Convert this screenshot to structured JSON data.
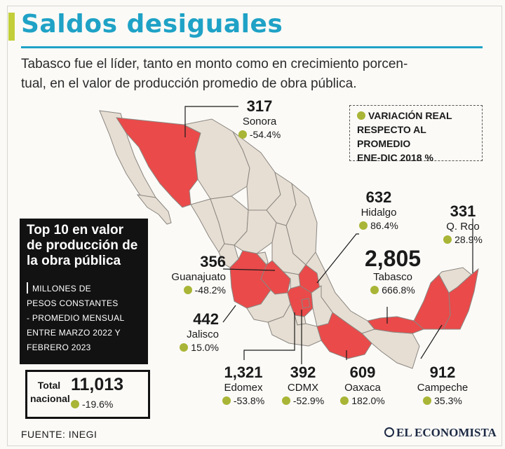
{
  "header": {
    "title": "Saldos desiguales",
    "subtitle_line1": "Tabasco fue el líder, tanto en monto como en crecimiento porcen-",
    "subtitle_line2": "tual, en el valor de producción promedio de obra pública."
  },
  "legend": {
    "line1": "VARIACIÓN REAL",
    "line2": "RESPECTO AL PROMEDIO",
    "line3": "ENE-DIC 2018 %",
    "dot_color": "#a9b536"
  },
  "top_box": {
    "title_line1": "Top 10 en valor",
    "title_line2": "de producción de",
    "title_line3": "la obra pública",
    "note_line1": "MILLONES DE",
    "note_line2": "PESOS CONSTANTES",
    "note_line3": "- PROMEDIO MENSUAL",
    "note_line4": "ENTRE MARZO 2022 Y",
    "note_line5": "FEBRERO 2023"
  },
  "total": {
    "label_line1": "Total",
    "label_line2": "nacional",
    "value": "11,013",
    "pct": "-19.6%"
  },
  "states": [
    {
      "name": "Sonora",
      "value": "317",
      "pct": "-54.4%"
    },
    {
      "name": "Hidalgo",
      "value": "632",
      "pct": "86.4%"
    },
    {
      "name": "Q. Roo",
      "value": "331",
      "pct": "28.9%"
    },
    {
      "name": "Tabasco",
      "value": "2,805",
      "pct": "666.8%"
    },
    {
      "name": "Guanajuato",
      "value": "356",
      "pct": "-48.2%"
    },
    {
      "name": "Jalisco",
      "value": "442",
      "pct": "15.0%"
    },
    {
      "name": "Edomex",
      "value": "1,321",
      "pct": "-53.8%"
    },
    {
      "name": "CDMX",
      "value": "392",
      "pct": "-52.9%"
    },
    {
      "name": "Oaxaca",
      "value": "609",
      "pct": "182.0%"
    },
    {
      "name": "Campeche",
      "value": "912",
      "pct": "35.3%"
    }
  ],
  "colors": {
    "title": "#1fa2c6",
    "highlight": "#ea4a4a",
    "base_state": "#e6ded3",
    "accent_dot": "#a9b536"
  },
  "footer": {
    "source": "FUENTE: INEGI",
    "logo": "EL ECONOMISTA"
  }
}
